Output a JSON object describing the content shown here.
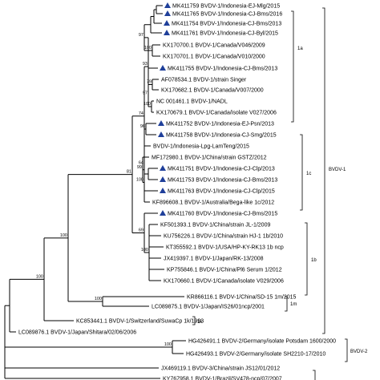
{
  "marker_color": "#1f3f9a",
  "marker_icon": "blue-triangle-icon",
  "taxa": [
    {
      "label": "MK411759 BVDV-1/Indonesia-EJ-Mlg/2015",
      "marked": true
    },
    {
      "label": "MK411765 BVDV-1/Indonesia-CJ-Bms/2016",
      "marked": true
    },
    {
      "label": "MK411754 BVDV-1/Indonesia-CJ-Bms/2013",
      "marked": true
    },
    {
      "label": "MK411761 BVDV-1/Indonesia-CJ-Byl/2015",
      "marked": true
    },
    {
      "label": "KX170700.1 BVDV-1/Canada/V046/2009",
      "marked": false
    },
    {
      "label": "KX170701.1 BVDV-1/Canada/V010/2000",
      "marked": false
    },
    {
      "label": "MK411755 BVDV-1/Indonesia-CJ-Bms/2013",
      "marked": true
    },
    {
      "label": "AF078534.1 BVDV-1/strain Singer",
      "marked": false
    },
    {
      "label": "KX170682.1 BVDV-1/Canada/V007/2000",
      "marked": false
    },
    {
      "label": "NC 001461.1 BVDV-1/NADL",
      "marked": false
    },
    {
      "label": "KX170679.1 BVDV-1/Canada/isolate V027/2006",
      "marked": false
    },
    {
      "label": "MK411752 BVDV-1/Indonesia-EJ-Psn/2013",
      "marked": true
    },
    {
      "label": "MK411758 BVDV-1/Indonesia-CJ-Smg/2015",
      "marked": true
    },
    {
      "label": "BVDV-1/Indonesia-Lpg-LamTeng/2015",
      "marked": false
    },
    {
      "label": "MF172980.1 BVDV-1/China/strain GSTZ/2012",
      "marked": false
    },
    {
      "label": "MK411751 BVDV-1/Indonesia-CJ-Clp/2013",
      "marked": true
    },
    {
      "label": "MK411753 BVDV-1/Indonesia-CJ-Bms/2013",
      "marked": true
    },
    {
      "label": "MK411763 BVDV-1/Indonesia-CJ-Clp/2015",
      "marked": true
    },
    {
      "label": "KF896608.1 BVDV-1/Australia/Bega-like 1c/2012",
      "marked": false
    },
    {
      "label": "MK411760 BVDV-1/Indonesia-CJ-Bms/2015",
      "marked": true
    },
    {
      "label": "KF501393.1 BVDV-1/China/strain JL-1/2009",
      "marked": false
    },
    {
      "label": "KU756226.1 BVDV-1/China/strain HJ-1 1b/2010",
      "marked": false
    },
    {
      "label": "KT355592.1 BVDV-1/USA/HP-KY-RK13 1b ncp",
      "marked": false
    },
    {
      "label": "JX419397.1 BVDV-1/Japan/RK-13/2008",
      "marked": false
    },
    {
      "label": "KP755846.1 BVDV-1/China/Pl6 Serum 1/2012",
      "marked": false
    },
    {
      "label": "KX170660.1 BVDV-1/Canada/isolate V029/2006",
      "marked": false
    },
    {
      "label": "KR866116.1 BVDV-1/China/SD-15 1m/2015",
      "marked": false
    },
    {
      "label": "LC089875.1 BVDV-1/Japan/IS26/01ncp/2001",
      "marked": false
    },
    {
      "label": "KC853441.1 BVDV-1/Switzerland/SuwaCp 1k/1993",
      "marked": false
    },
    {
      "label": "LC089876.1 BVDV-1/Japan/Shitara/02/06/2006",
      "marked": false
    },
    {
      "label": "HG426491.1 BVDV-2/Germany/isolate Potsdam 1600/2000",
      "marked": false
    },
    {
      "label": "HG426493.1 BVDV-2/Germany/isolate SH2210-17/2010",
      "marked": false
    },
    {
      "label": "JX469119.1 BVDV-3/China/strain JS12/01/2012",
      "marked": false
    },
    {
      "label": "KY767958.1 BVDV-1/Brazil/SV478-ncp/07/2007",
      "marked": false
    }
  ],
  "bootstrap": [
    "97",
    "86",
    "88",
    "93",
    "100",
    "97",
    "79",
    "100",
    "64",
    "96",
    "99",
    "100",
    "74",
    "100",
    "69",
    "81",
    "100",
    "100",
    "100",
    "100"
  ],
  "clades": {
    "sub_1a": "1a",
    "sub_1c": "1c",
    "sub_1b": "1b",
    "sub_1m": "1m",
    "sub_1k": "1k",
    "genotype_1": "BVDV-1",
    "genotype_2": "BVDV-2"
  }
}
